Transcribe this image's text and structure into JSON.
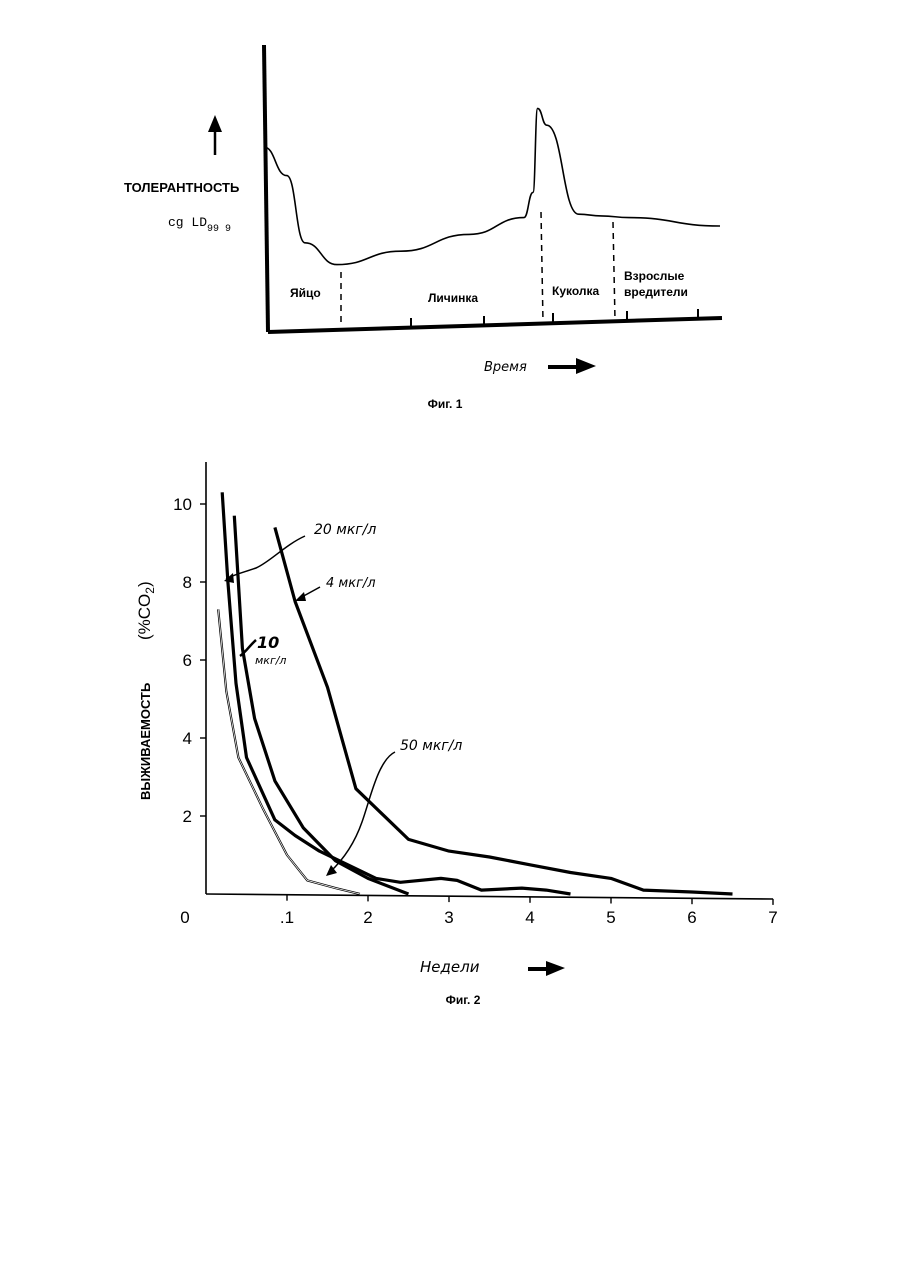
{
  "figure1": {
    "caption": "Фиг. 1",
    "ylabel_line1": "ТОЛЕРАНТНОСТЬ",
    "ylabel_line2": "cg LD",
    "ylabel_sub": "99 9",
    "xlabel": "Время",
    "chart_data": {
      "type": "line",
      "title": "",
      "xlabel": "Время",
      "ylabel": "ТОЛЕРАНТНОСТЬ cg LD99 9",
      "stages": [
        "Яйцо",
        "Личинка",
        "Куколка",
        "Взрослые вредители"
      ],
      "series": [
        {
          "x": [
            0,
            0.05,
            0.09,
            0.16,
            0.3,
            0.45,
            0.57,
            0.59,
            0.6,
            0.62,
            0.69,
            0.74,
            0.8,
            1.0
          ],
          "y": [
            0.72,
            0.55,
            0.15,
            0.02,
            0.1,
            0.2,
            0.3,
            0.45,
            0.95,
            0.85,
            0.32,
            0.31,
            0.3,
            0.25
          ]
        }
      ],
      "stage_boundaries": [
        0.16,
        0.6,
        0.76
      ],
      "grid": false
    }
  },
  "figure2": {
    "caption": "Фиг. 2",
    "ylabel_main": "ВЫЖИВАЕМОСТЬ",
    "ylabel_unit": "(%CO",
    "ylabel_unit_sub": "2",
    "ylabel_unit_close": ")",
    "xlabel": "Недели",
    "annotations": {
      "c20": "20 мкг/л",
      "c4": "4 мкг/л",
      "c10_num": "10",
      "c10_unit": "мкг/л",
      "c50": "50 мкг/л"
    },
    "chart_data": {
      "type": "line",
      "title": "",
      "xlabel": "Недели",
      "ylabel": "ВЫЖИВАЕМОСТЬ (%CO2)",
      "x_ticks": [
        "0",
        ".1",
        "2",
        "3",
        "4",
        "5",
        "6",
        "7"
      ],
      "y_ticks": [
        "2",
        "4",
        "6",
        "8",
        "10"
      ],
      "xlim": [
        0,
        7
      ],
      "ylim": [
        0,
        11
      ],
      "grid": false,
      "series": [
        {
          "name": "4 мкг/л",
          "x": [
            0.85,
            1.1,
            1.5,
            1.85,
            2.5,
            3.0,
            3.5,
            4.0,
            4.5,
            5.0,
            5.4,
            6.0,
            6.5
          ],
          "y": [
            9.4,
            7.5,
            5.3,
            2.7,
            1.4,
            1.1,
            0.95,
            0.75,
            0.55,
            0.4,
            0.1,
            0.05,
            0.0
          ]
        },
        {
          "name": "20 мкг/л",
          "x": [
            0.2,
            0.27,
            0.37,
            0.5,
            0.85,
            1.1,
            1.4,
            1.7,
            2.1,
            2.4,
            2.9,
            3.1,
            3.4,
            3.9,
            4.2,
            4.5
          ],
          "y": [
            10.3,
            8.0,
            5.4,
            3.5,
            1.9,
            1.5,
            1.1,
            0.8,
            0.4,
            0.3,
            0.4,
            0.35,
            0.1,
            0.15,
            0.1,
            0.0
          ]
        },
        {
          "name": "10 мкг/л",
          "x": [
            0.35,
            0.45,
            0.6,
            0.85,
            1.2,
            1.6,
            2.0,
            2.5
          ],
          "y": [
            9.7,
            6.3,
            4.5,
            2.9,
            1.7,
            0.85,
            0.4,
            0.0
          ]
        },
        {
          "name": "50 мкг/л",
          "x": [
            0.15,
            0.25,
            0.4,
            0.7,
            1.0,
            1.25,
            1.6,
            1.9
          ],
          "y": [
            7.3,
            5.2,
            3.5,
            2.2,
            1.0,
            0.35,
            0.15,
            0.0
          ]
        }
      ]
    }
  }
}
